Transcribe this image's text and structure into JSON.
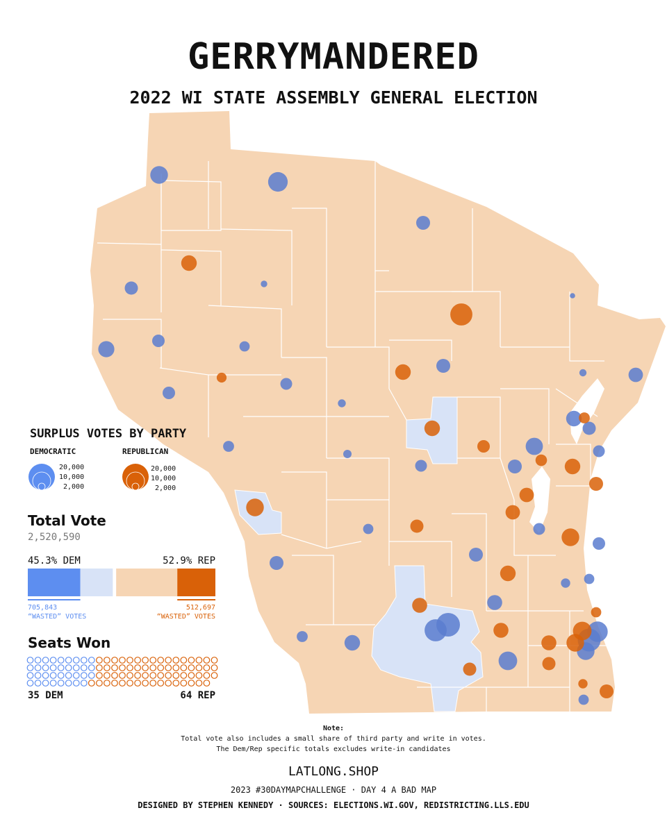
{
  "title": "GERRYMANDERED",
  "subtitle": "2022 WI STATE ASSEMBLY GENERAL ELECTION",
  "colors": {
    "land": "#f6d5b4",
    "dem_district": "#d8e3f7",
    "dem_bubble": "#5b7ccf",
    "dem_bar": "#5d8ef0",
    "rep": "#d96108",
    "district_line": "#ffffff"
  },
  "legend": {
    "title": "SURPLUS VOTES BY PARTY",
    "democratic_label": "DEMOCRATIC",
    "republican_label": "REPUBLICAN",
    "scale": [
      "20,000",
      "10,000",
      "2,000"
    ]
  },
  "total_vote": {
    "label": "Total Vote",
    "value": "2,520,590",
    "dem_pct_label": "45.3% DEM",
    "rep_pct_label": "52.9% REP",
    "dem_share": 0.453,
    "rep_share": 0.529,
    "dem_wasted_share": 0.28,
    "rep_wasted_share": 0.203,
    "dem_wasted_value": "705,843",
    "rep_wasted_value": "512,697",
    "wasted_label": "“WASTED” VOTES"
  },
  "seats": {
    "label": "Seats Won",
    "dem_count": 35,
    "rep_count": 64,
    "dem_label": "35 DEM",
    "rep_label": "64 REP"
  },
  "note": {
    "heading": "Note:",
    "line1": "Total vote also includes a small share of third party and write in votes.",
    "line2": "The Dem/Rep specific totals excludes write-in candidates"
  },
  "footer": {
    "brand": "LATLONG.SHOP",
    "line1": "2023 #30DAYMAPCHALLENGE · DAY 4 A BAD MAP",
    "line2": "DESIGNED BY STEPHEN KENNEDY · SOURCES: ELECTIONS.WI.GOV, REDISTRICTING.LLS.EDU"
  },
  "map_data": {
    "type": "proportional-symbol",
    "dem_bubbles": [
      {
        "region": "northwest",
        "votes": 9000
      },
      {
        "region": "north",
        "votes": 11000
      },
      {
        "region": "north-central",
        "votes": 5500
      },
      {
        "region": "west",
        "votes": 5000
      },
      {
        "region": "west",
        "votes": 1200
      },
      {
        "region": "west",
        "votes": 4500
      },
      {
        "region": "west",
        "votes": 7500
      },
      {
        "region": "west",
        "votes": 3000
      },
      {
        "region": "west-central",
        "votes": 4500
      },
      {
        "region": "west-central",
        "votes": 4000
      },
      {
        "region": "central",
        "votes": 1800
      },
      {
        "region": "central",
        "votes": 5500
      },
      {
        "region": "central",
        "votes": 4000
      },
      {
        "region": "west-central",
        "votes": 3500
      },
      {
        "region": "central",
        "votes": 2000
      },
      {
        "region": "northeast",
        "votes": 800
      },
      {
        "region": "northeast",
        "votes": 1500
      },
      {
        "region": "door county",
        "votes": 6000
      },
      {
        "region": "green bay",
        "votes": 7000
      },
      {
        "region": "green bay",
        "votes": 5000
      },
      {
        "region": "fox valley",
        "votes": 5500
      },
      {
        "region": "fox valley",
        "votes": 8500
      },
      {
        "region": "fox valley",
        "votes": 4000
      },
      {
        "region": "southwest",
        "votes": 5500
      },
      {
        "region": "southwest",
        "votes": 3500
      },
      {
        "region": "southwest",
        "votes": 3000
      },
      {
        "region": "southwest",
        "votes": 7000
      },
      {
        "region": "madison",
        "votes": 16000
      },
      {
        "region": "madison",
        "votes": 14000
      },
      {
        "region": "south-central",
        "votes": 6500
      },
      {
        "region": "south-central",
        "votes": 5500
      },
      {
        "region": "southeast",
        "votes": 10000
      },
      {
        "region": "milwaukee",
        "votes": 15000
      },
      {
        "region": "milwaukee",
        "votes": 12000
      },
      {
        "region": "milwaukee",
        "votes": 9000
      },
      {
        "region": "sheboygan",
        "votes": 4500
      },
      {
        "region": "sheboygan",
        "votes": 3000
      },
      {
        "region": "ozaukee",
        "votes": 2500
      },
      {
        "region": "racine",
        "votes": 4000
      },
      {
        "region": "kenosha",
        "votes": 3000
      }
    ],
    "rep_bubbles": [
      {
        "region": "northwest",
        "votes": 7000
      },
      {
        "region": "north-central",
        "votes": 14000
      },
      {
        "region": "west",
        "votes": 2800
      },
      {
        "region": "central",
        "votes": 7000
      },
      {
        "region": "central",
        "votes": 7000
      },
      {
        "region": "east-central",
        "votes": 4500
      },
      {
        "region": "la crosse",
        "votes": 9000
      },
      {
        "region": "fox valley",
        "votes": 6000
      },
      {
        "region": "fox valley",
        "votes": 6000
      },
      {
        "region": "fox valley",
        "votes": 7000
      },
      {
        "region": "fox valley",
        "votes": 3800
      },
      {
        "region": "green bay",
        "votes": 3500
      },
      {
        "region": "green bay",
        "votes": 5500
      },
      {
        "region": "east",
        "votes": 9000
      },
      {
        "region": "central",
        "votes": 5000
      },
      {
        "region": "south-central",
        "votes": 7000
      },
      {
        "region": "south-central",
        "votes": 6500
      },
      {
        "region": "southeast",
        "votes": 6500
      },
      {
        "region": "southeast",
        "votes": 6500
      },
      {
        "region": "southeast",
        "votes": 5000
      },
      {
        "region": "southeast",
        "votes": 5000
      },
      {
        "region": "waukesha",
        "votes": 9000
      },
      {
        "region": "waukesha",
        "votes": 10000
      },
      {
        "region": "kenosha",
        "votes": 5500
      },
      {
        "region": "kenosha",
        "votes": 3000
      },
      {
        "region": "racine",
        "votes": 2500
      }
    ]
  }
}
